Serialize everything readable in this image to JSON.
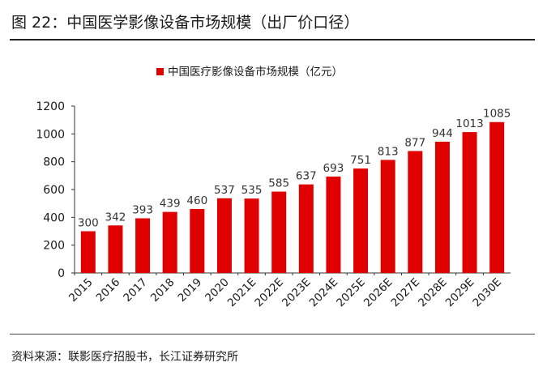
{
  "figure": {
    "title": "图 22：中国医学影像设备市场规模（出厂价口径）",
    "source": "资料来源：联影医疗招股书，长江证券研究所"
  },
  "colors": {
    "bar": "#e00000",
    "axis": "#333333",
    "text": "#1a1a1a"
  },
  "chart_data": {
    "type": "bar",
    "title": "",
    "xlabel": "",
    "ylabel": "",
    "legend": {
      "position": "top"
    },
    "grid": false,
    "categories": [
      "2015",
      "2016",
      "2017",
      "2018",
      "2019",
      "2020",
      "2021E",
      "2022E",
      "2023E",
      "2024E",
      "2025E",
      "2026E",
      "2027E",
      "2028E",
      "2029E",
      "2030E"
    ],
    "series": [
      {
        "name": "中国医疗影像设备市场规模（亿元）",
        "values": [
          300,
          342,
          393,
          439,
          460,
          537,
          535,
          585,
          637,
          693,
          751,
          813,
          877,
          944,
          1013,
          1085
        ]
      }
    ],
    "ylim": [
      0,
      1200
    ],
    "yticks": [
      0,
      200,
      400,
      600,
      800,
      1000,
      1200
    ]
  }
}
